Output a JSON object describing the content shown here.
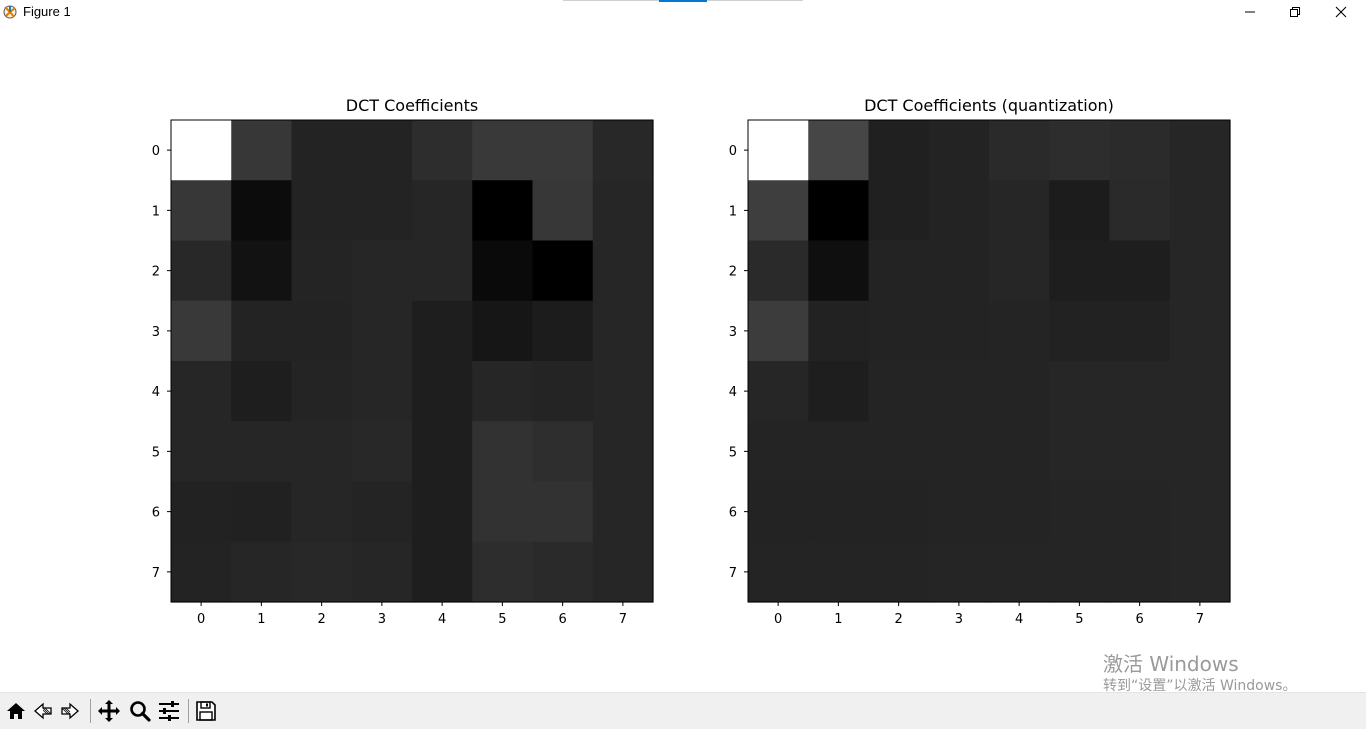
{
  "window": {
    "title": "Figure 1",
    "icon": "matplotlib-figure-icon",
    "controls": [
      "minimize-icon",
      "maximize-icon",
      "close-icon"
    ]
  },
  "chart_data": [
    {
      "type": "heatmap",
      "title": "DCT Coefficients",
      "colormap": "gray",
      "x_ticks": [
        "0",
        "1",
        "2",
        "3",
        "4",
        "5",
        "6",
        "7"
      ],
      "y_ticks": [
        "0",
        "1",
        "2",
        "3",
        "4",
        "5",
        "6",
        "7"
      ],
      "grid": false,
      "values": [
        [
          255,
          55,
          35,
          35,
          45,
          57,
          57,
          40
        ],
        [
          55,
          12,
          35,
          35,
          38,
          0,
          55,
          38
        ],
        [
          40,
          18,
          36,
          38,
          38,
          10,
          0,
          38
        ],
        [
          57,
          35,
          35,
          38,
          30,
          22,
          28,
          38
        ],
        [
          38,
          30,
          36,
          38,
          30,
          38,
          36,
          38
        ],
        [
          38,
          38,
          38,
          40,
          30,
          50,
          46,
          38
        ],
        [
          34,
          33,
          38,
          36,
          30,
          50,
          50,
          38
        ],
        [
          35,
          38,
          40,
          38,
          30,
          45,
          42,
          38
        ]
      ]
    },
    {
      "type": "heatmap",
      "title": "DCT Coefficients (quantization)",
      "colormap": "gray",
      "x_ticks": [
        "0",
        "1",
        "2",
        "3",
        "4",
        "5",
        "6",
        "7"
      ],
      "y_ticks": [
        "0",
        "1",
        "2",
        "3",
        "4",
        "5",
        "6",
        "7"
      ],
      "grid": false,
      "values": [
        [
          255,
          70,
          32,
          35,
          42,
          45,
          43,
          38
        ],
        [
          62,
          0,
          32,
          35,
          38,
          28,
          42,
          38
        ],
        [
          42,
          15,
          35,
          35,
          38,
          30,
          30,
          38
        ],
        [
          60,
          34,
          35,
          35,
          36,
          34,
          34,
          38
        ],
        [
          38,
          30,
          36,
          36,
          36,
          38,
          38,
          38
        ],
        [
          36,
          36,
          36,
          36,
          36,
          38,
          38,
          38
        ],
        [
          35,
          35,
          35,
          36,
          36,
          37,
          37,
          38
        ],
        [
          36,
          36,
          36,
          37,
          37,
          37,
          37,
          38
        ]
      ]
    }
  ],
  "watermark": {
    "line1": "激活 Windows",
    "line2": "转到“设置”以激活 Windows。"
  },
  "toolbar": {
    "tools": [
      "home-icon",
      "back-icon",
      "forward-icon",
      "pan-icon",
      "zoom-icon",
      "configure-subplots-icon",
      "save-icon"
    ]
  }
}
